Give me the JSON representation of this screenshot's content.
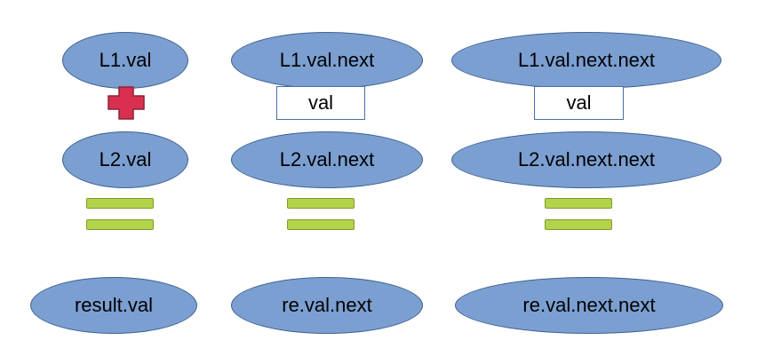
{
  "row1": {
    "col1": "L1.val",
    "col2": "L1.val.next",
    "col3": "L1.val.next.next"
  },
  "row2": {
    "col1": "L2.val",
    "col2": "L2.val.next",
    "col3": "L2.val.next.next"
  },
  "row3": {
    "col1": "result.val",
    "col2": "re.val.next",
    "col3": "re.val.next.next"
  },
  "carry_boxes": {
    "col2": "val",
    "col3": "val"
  },
  "colors": {
    "ellipse_fill": "#7b9fd1",
    "ellipse_border": "#3f6190",
    "plus_fill": "#d9304f",
    "equals_fill": "#b3d34a"
  },
  "icons": [
    "plus-icon",
    "equals-icon"
  ]
}
